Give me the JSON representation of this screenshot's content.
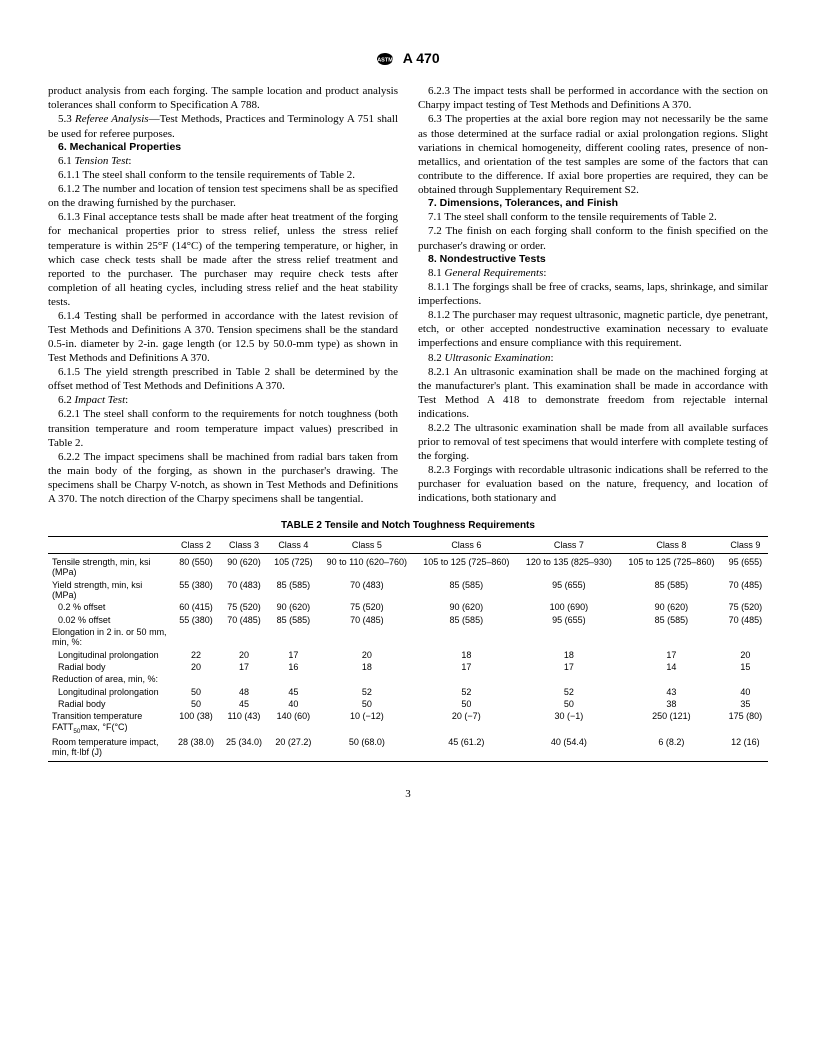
{
  "header": {
    "designation": "A 470"
  },
  "body": {
    "p0": "product analysis from each forging. The sample location and product analysis tolerances shall conform to Specification A 788.",
    "p1_prefix": "5.3 ",
    "p1_em": "Referee Analysis",
    "p1_rest": "—Test Methods, Practices and Terminology A 751 shall be used for referee purposes.",
    "h6": "6.  Mechanical Properties",
    "p6_1_prefix": "6.1 ",
    "p6_1_em": "Tension Test",
    "p6_1_colon": ":",
    "p6_1_1": "6.1.1 The steel shall conform to the tensile requirements of Table 2.",
    "p6_1_2": "6.1.2 The number and location of tension test specimens shall be as specified on the drawing furnished by the purchaser.",
    "p6_1_3": "6.1.3 Final acceptance tests shall be made after heat treatment of the forging for mechanical properties prior to stress relief, unless the stress relief temperature is within 25°F (14°C) of the tempering temperature, or higher, in which case check tests shall be made after the stress relief treatment and reported to the purchaser. The purchaser may require check tests after completion of all heating cycles, including stress relief and the heat stability tests.",
    "p6_1_4": "6.1.4 Testing shall be performed in accordance with the latest revision of Test Methods and Definitions A 370. Tension specimens shall be the standard 0.5-in. diameter by 2-in. gage length (or 12.5 by 50.0-mm type) as shown in Test Methods and Definitions A 370.",
    "p6_1_5": "6.1.5 The yield strength prescribed in Table 2 shall be determined by the offset method of Test Methods and Definitions A 370.",
    "p6_2_prefix": "6.2 ",
    "p6_2_em": "Impact Test",
    "p6_2_colon": ":",
    "p6_2_1": "6.2.1 The steel shall conform to the requirements for notch toughness (both transition temperature and room temperature impact values) prescribed in Table 2.",
    "p6_2_2": "6.2.2 The impact specimens shall be machined from radial bars taken from the main body of the forging, as shown in the purchaser's drawing. The specimens shall be Charpy V-notch, as shown in Test Methods and Definitions A 370. The notch direction of the Charpy specimens shall be tangential.",
    "p6_2_3": "6.2.3 The impact tests shall be performed in accordance with the section on Charpy impact testing of Test Methods and Definitions A 370.",
    "p6_3": "6.3 The properties at the axial bore region may not necessarily be the same as those determined at the surface radial or axial prolongation regions. Slight variations in chemical homogeneity, different cooling rates, presence of non-metallics, and orientation of the test samples are some of the factors that can contribute to the difference. If axial bore properties are required, they can be obtained through Supplementary Requirement S2.",
    "h7": "7.  Dimensions, Tolerances, and Finish",
    "p7_1": "7.1 The steel shall conform to the tensile requirements of Table 2.",
    "p7_2": "7.2 The finish on each forging shall conform to the finish specified on the purchaser's drawing or order.",
    "h8": "8.  Nondestructive Tests",
    "p8_1_prefix": "8.1 ",
    "p8_1_em": "General Requirements",
    "p8_1_colon": ":",
    "p8_1_1": "8.1.1 The forgings shall be free of cracks, seams, laps, shrinkage, and similar imperfections.",
    "p8_1_2": "8.1.2 The purchaser may request ultrasonic, magnetic particle, dye penetrant, etch, or other accepted nondestructive examination necessary to evaluate imperfections and ensure compliance with this requirement.",
    "p8_2_prefix": "8.2 ",
    "p8_2_em": "Ultrasonic Examination",
    "p8_2_colon": ":",
    "p8_2_1": "8.2.1 An ultrasonic examination shall be made on the machined forging at the manufacturer's plant. This examination shall be made in accordance with Test Method A 418 to demonstrate freedom from rejectable internal indications.",
    "p8_2_2": "8.2.2 The ultrasonic examination shall be made from all available surfaces prior to removal of test specimens that would interfere with complete testing of the forging.",
    "p8_2_3": "8.2.3 Forgings with recordable ultrasonic indications shall be referred to the purchaser for evaluation based on the nature, frequency, and location of indications, both stationary and"
  },
  "table": {
    "caption": "TABLE 2   Tensile and Notch Toughness Requirements",
    "columns": [
      "",
      "Class 2",
      "Class 3",
      "Class 4",
      "Class 5",
      "Class 6",
      "Class 7",
      "Class 8",
      "Class 9"
    ],
    "rows": [
      {
        "label": "Tensile strength, min, ksi (MPa)",
        "indent": 0,
        "vals": [
          "80 (550)",
          "90 (620)",
          "105 (725)",
          "90 to 110 (620–760)",
          "105 to 125 (725–860)",
          "120 to 135 (825–930)",
          "105 to 125 (725–860)",
          "95 (655)"
        ]
      },
      {
        "label": "Yield strength, min, ksi (MPa)",
        "indent": 0,
        "vals": [
          "55 (380)",
          "70 (483)",
          "85 (585)",
          "70 (483)",
          "85 (585)",
          "95 (655)",
          "85 (585)",
          "70 (485)"
        ]
      },
      {
        "label": "0.2 % offset",
        "indent": 1,
        "vals": [
          "60 (415)",
          "75 (520)",
          "90 (620)",
          "75 (520)",
          "90 (620)",
          "100 (690)",
          "90 (620)",
          "75 (520)"
        ]
      },
      {
        "label": "0.02 % offset",
        "indent": 1,
        "vals": [
          "55 (380)",
          "70 (485)",
          "85 (585)",
          "70 (485)",
          "85 (585)",
          "95 (655)",
          "85 (585)",
          "70 (485)"
        ]
      },
      {
        "label": "Elongation in 2 in. or 50 mm, min, %:",
        "indent": 0,
        "vals": [
          "",
          "",
          "",
          "",
          "",
          "",
          "",
          ""
        ]
      },
      {
        "label": "Longitudinal prolongation",
        "indent": 1,
        "vals": [
          "22",
          "20",
          "17",
          "20",
          "18",
          "18",
          "17",
          "20"
        ]
      },
      {
        "label": "Radial body",
        "indent": 1,
        "vals": [
          "20",
          "17",
          "16",
          "18",
          "17",
          "17",
          "14",
          "15"
        ]
      },
      {
        "label": "Reduction of area, min, %:",
        "indent": 0,
        "vals": [
          "",
          "",
          "",
          "",
          "",
          "",
          "",
          ""
        ]
      },
      {
        "label": "Longitudinal prolongation",
        "indent": 1,
        "vals": [
          "50",
          "48",
          "45",
          "52",
          "52",
          "52",
          "43",
          "40"
        ]
      },
      {
        "label": "Radial body",
        "indent": 1,
        "vals": [
          "50",
          "45",
          "40",
          "50",
          "50",
          "50",
          "38",
          "35"
        ]
      },
      {
        "label": "Transition temperature FATT",
        "sub": "50",
        "label2": "max, °F(°C)",
        "indent": 0,
        "vals": [
          "100 (38)",
          "110 (43)",
          "140 (60)",
          "10 (−12)",
          "20 (−7)",
          "30 (−1)",
          "250 (121)",
          "175 (80)"
        ]
      },
      {
        "label": "Room temperature impact, min, ft·lbf (J)",
        "indent": 0,
        "vals": [
          "28 (38.0)",
          "25 (34.0)",
          "20 (27.2)",
          "50 (68.0)",
          "45 (61.2)",
          "40 (54.4)",
          "6 (8.2)",
          "12 (16)"
        ]
      }
    ]
  },
  "pagenum": "3"
}
